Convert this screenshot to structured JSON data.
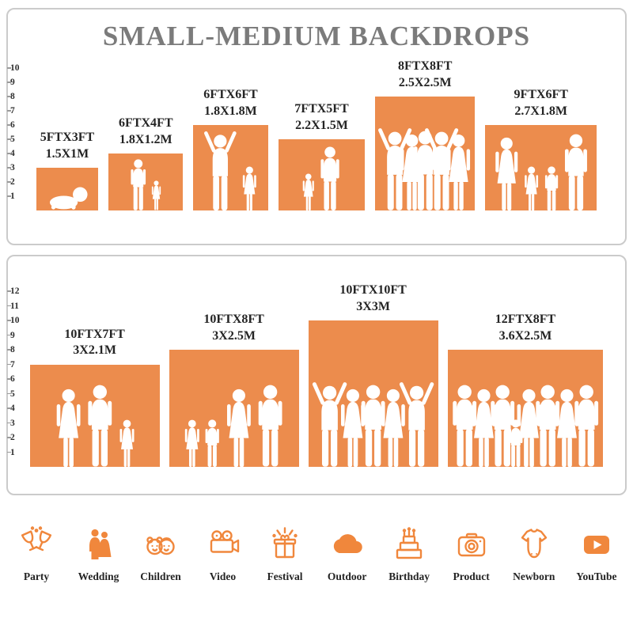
{
  "title": "SMALL-MEDIUM BACKDROPS",
  "colors": {
    "bar": "#EC8C4D",
    "icon": "#F0873C",
    "title_gray": "#7B7B7B",
    "label_dark": "#242424",
    "panel_border": "#CBCBCB"
  },
  "chart_data": [
    {
      "type": "bar",
      "panel": "small-medium-top",
      "title": "SMALL-MEDIUM BACKDROPS",
      "units": "feet",
      "ylim": [
        0,
        10
      ],
      "yticks": [
        1,
        2,
        3,
        4,
        5,
        6,
        7,
        8,
        9,
        10
      ],
      "grid": false,
      "bars": [
        {
          "label_ft": "5FTX3FT",
          "label_m": "1.5X1M",
          "width_ft": 5,
          "height_ft": 3,
          "figures": [
            "baby"
          ]
        },
        {
          "label_ft": "6FTX4FT",
          "label_m": "1.8X1.2M",
          "width_ft": 6,
          "height_ft": 4,
          "figures": [
            "man",
            "girl"
          ]
        },
        {
          "label_ft": "6FTX6FT",
          "label_m": "1.8X1.8M",
          "width_ft": 6,
          "height_ft": 6,
          "figures": [
            "woman-arms-up",
            "girl"
          ]
        },
        {
          "label_ft": "7FTX5FT",
          "label_m": "2.2X1.5M",
          "width_ft": 7,
          "height_ft": 5,
          "figures": [
            "girl",
            "man"
          ]
        },
        {
          "label_ft": "8FTX8FT",
          "label_m": "2.5X2.5M",
          "width_ft": 8,
          "height_ft": 8,
          "figures": [
            "man-arms-up",
            "woman",
            "man",
            "man-arms-up",
            "woman"
          ]
        },
        {
          "label_ft": "9FTX6FT",
          "label_m": "2.7X1.8M",
          "width_ft": 9,
          "height_ft": 6,
          "figures": [
            "woman",
            "girl",
            "boy",
            "man"
          ]
        }
      ]
    },
    {
      "type": "bar",
      "panel": "large-bottom",
      "units": "feet",
      "ylim": [
        0,
        12
      ],
      "yticks": [
        1,
        2,
        3,
        4,
        5,
        6,
        7,
        8,
        9,
        10,
        11,
        12
      ],
      "grid": false,
      "bars": [
        {
          "label_ft": "10FTX7FT",
          "label_m": "3X2.1M",
          "width_ft": 10,
          "height_ft": 7,
          "figures": [
            "woman",
            "man",
            "girl"
          ]
        },
        {
          "label_ft": "10FTX8FT",
          "label_m": "3X2.5M",
          "width_ft": 10,
          "height_ft": 8,
          "figures": [
            "girl",
            "boy",
            "woman",
            "man"
          ]
        },
        {
          "label_ft": "10FTX10FT",
          "label_m": "3X3M",
          "width_ft": 10,
          "height_ft": 10,
          "figures": [
            "man-arms-up",
            "woman",
            "man",
            "woman",
            "man-arms-up"
          ]
        },
        {
          "label_ft": "12FTX8FT",
          "label_m": "3.6X2.5M",
          "width_ft": 12,
          "height_ft": 8,
          "figures": [
            "man",
            "woman",
            "man",
            "boy",
            "woman",
            "man",
            "woman",
            "man"
          ]
        }
      ]
    }
  ],
  "categories": [
    {
      "icon": "party-icon",
      "label": "Party"
    },
    {
      "icon": "wedding-icon",
      "label": "Wedding"
    },
    {
      "icon": "children-icon",
      "label": "Children"
    },
    {
      "icon": "video-icon",
      "label": "Video"
    },
    {
      "icon": "festival-icon",
      "label": "Festival"
    },
    {
      "icon": "outdoor-icon",
      "label": "Outdoor"
    },
    {
      "icon": "birthday-icon",
      "label": "Birthday"
    },
    {
      "icon": "product-icon",
      "label": "Product"
    },
    {
      "icon": "newborn-icon",
      "label": "Newborn"
    },
    {
      "icon": "youtube-icon",
      "label": "YouTube"
    }
  ]
}
